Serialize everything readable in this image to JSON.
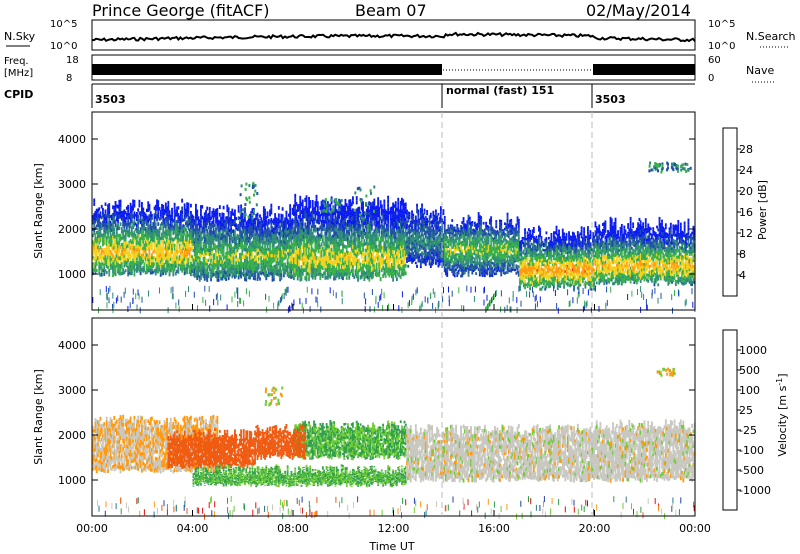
{
  "title": {
    "station": "Prince George (fitACF)",
    "beam": "Beam 07",
    "date": "02/May/2014"
  },
  "header_panels": {
    "nsky_label": "N.Sky",
    "nsky_ticks": [
      "10^5",
      "10^0"
    ],
    "nsearch_label": "N.Search",
    "freq_label": "Freq.",
    "freq_unit": "[MHz]",
    "freq_ticks": [
      "18",
      "8"
    ],
    "nave_label": "Nave",
    "nave_ticks": [
      "60",
      "0"
    ],
    "cpid_label": "CPID",
    "cpid_segments": [
      {
        "label": "3503",
        "start_hour": 0
      },
      {
        "label": "normal (fast) 151",
        "start_hour": 14
      },
      {
        "label": "3503",
        "start_hour": 20
      }
    ]
  },
  "chart_data": [
    {
      "type": "heatmap",
      "name": "power",
      "ylabel": "Slant Range [km]",
      "yticks": [
        1000,
        2000,
        3000,
        4000
      ],
      "ylim": [
        200,
        4600
      ],
      "xlim": [
        0,
        24
      ],
      "colorbar_label": "Power [dB]",
      "colorbar_ticks": [
        "4",
        "8",
        "12",
        "16",
        "20",
        "24",
        "28"
      ],
      "colorbar_colors": [
        "#0a1cf0",
        "#1f4fa8",
        "#2e8a7a",
        "#38b04a",
        "#f2d21e",
        "#ff9a10",
        "#f03018",
        "#e01010"
      ],
      "bands": [
        {
          "x": [
            0.0,
            4.0
          ],
          "range": [
            1000,
            2400
          ],
          "peak": 1450,
          "level": 20
        },
        {
          "x": [
            4.0,
            8.0
          ],
          "range": [
            900,
            2300
          ],
          "peak": 1350,
          "level": 16
        },
        {
          "x": [
            8.0,
            12.5
          ],
          "range": [
            900,
            2500
          ],
          "peak": 1300,
          "level": 18
        },
        {
          "x": [
            12.5,
            14.0
          ],
          "range": [
            1200,
            2300
          ],
          "peak": 1700,
          "level": 10
        },
        {
          "x": [
            14.0,
            17.0
          ],
          "range": [
            1000,
            2100
          ],
          "peak": 1500,
          "level": 16
        },
        {
          "x": [
            17.0,
            20.0
          ],
          "range": [
            700,
            1800
          ],
          "peak": 1050,
          "level": 22
        },
        {
          "x": [
            20.0,
            24.0
          ],
          "range": [
            800,
            2000
          ],
          "peak": 1150,
          "level": 20
        }
      ]
    },
    {
      "type": "heatmap",
      "name": "velocity",
      "xlabel": "Time UT",
      "ylabel": "Slant Range [km]",
      "yticks": [
        1000,
        2000,
        3000,
        4000
      ],
      "ylim": [
        200,
        4600
      ],
      "xlim": [
        0,
        24
      ],
      "xticks": [
        "00:00",
        "04:00",
        "08:00",
        "12:00",
        "16:00",
        "20:00",
        "00:00"
      ],
      "colorbar_label": "Velocity [m s^-1]",
      "colorbar_ticks": [
        "1000",
        "500",
        "100",
        "25",
        "-25",
        "-100",
        "-500",
        "-1000"
      ],
      "colorbar_colors": [
        "#2040b0",
        "#2a7a8a",
        "#2e9e4a",
        "#6ecc34",
        "#c8c8c0",
        "#c8c8c0",
        "#ff9a10",
        "#f05a10",
        "#e01010"
      ],
      "bands": [
        {
          "x": [
            0.0,
            5.0
          ],
          "range": [
            1200,
            2300
          ],
          "velocity": -25
        },
        {
          "x": [
            3.0,
            6.5
          ],
          "range": [
            1300,
            2000
          ],
          "velocity": -300
        },
        {
          "x": [
            4.0,
            12.5
          ],
          "range": [
            900,
            1200
          ],
          "velocity": 100
        },
        {
          "x": [
            8.0,
            12.5
          ],
          "range": [
            1500,
            2200
          ],
          "velocity": 100
        },
        {
          "x": [
            6.5,
            8.5
          ],
          "range": [
            1500,
            2100
          ],
          "velocity": -300
        },
        {
          "x": [
            12.5,
            20.0
          ],
          "range": [
            1000,
            2100
          ],
          "velocity": 0
        },
        {
          "x": [
            20.0,
            24.0
          ],
          "range": [
            1000,
            2200
          ],
          "velocity": 0
        }
      ]
    }
  ]
}
